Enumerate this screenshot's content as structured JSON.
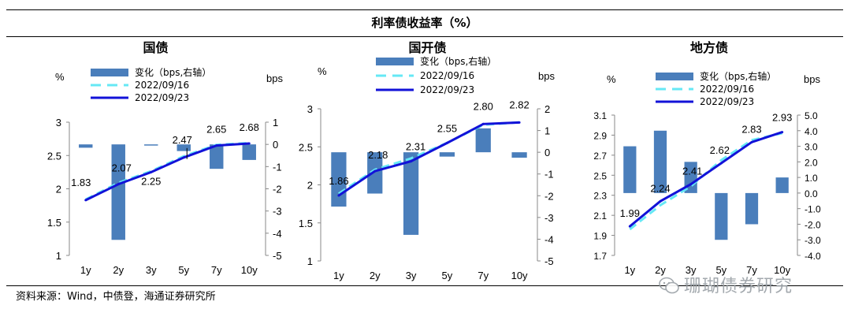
{
  "header": {
    "title": "利率债收益率（%）"
  },
  "source": {
    "text": "资料来源：Wind，中债登，海通证券研究所"
  },
  "watermark": {
    "text": "珊瑚债券研究"
  },
  "colors": {
    "bar": "#4a7ebb",
    "prev_line": "#66e8f5",
    "curr_line": "#1212d8"
  },
  "chart_data": [
    {
      "id": "gz",
      "type": "bar+line",
      "title": "国债",
      "categories": [
        "1y",
        "2y",
        "3y",
        "5y",
        "7y",
        "10y"
      ],
      "left_unit": "%",
      "right_unit": "bps",
      "legend": {
        "bar": "变化（bps,右轴）",
        "prev": "2022/09/16",
        "curr": "2022/09/23"
      },
      "y_left": {
        "min": 1,
        "max": 3,
        "ticks": [
          1,
          1.5,
          2,
          2.5,
          3
        ],
        "tick_labels": [
          "1",
          "1.5",
          "2",
          "2.5",
          "3"
        ]
      },
      "y_right": {
        "min": -5,
        "max": 1,
        "ticks": [
          -5,
          -4,
          -3,
          -2,
          -1,
          0,
          1
        ],
        "tick_labels": [
          "-5",
          "-4",
          "-3",
          "-2",
          "-1",
          "0",
          "1"
        ]
      },
      "series": [
        {
          "name": "变化（bps,右轴）",
          "kind": "bar",
          "values": [
            -0.15,
            -4.3,
            -0.05,
            -0.3,
            -1.1,
            -0.7
          ]
        },
        {
          "name": "2022/09/16",
          "kind": "line",
          "values": [
            1.84,
            2.09,
            2.265,
            2.49,
            2.66,
            2.687
          ]
        },
        {
          "name": "2022/09/23",
          "kind": "line",
          "values": [
            1.83,
            2.07,
            2.25,
            2.47,
            2.65,
            2.68
          ]
        }
      ],
      "data_labels": [
        "1.83",
        "2.07",
        "2.25",
        "2.47",
        "2.65",
        "2.68"
      ]
    },
    {
      "id": "gkz",
      "type": "bar+line",
      "title": "国开债",
      "categories": [
        "1y",
        "2y",
        "3y",
        "5y",
        "7y",
        "10y"
      ],
      "left_unit": "%",
      "right_unit": "bps",
      "legend": {
        "bar": "变化（bps,右轴）",
        "prev": "2022/09/16",
        "curr": "2022/09/23"
      },
      "y_left": {
        "min": 1,
        "max": 3,
        "ticks": [
          1,
          1.5,
          2,
          2.5,
          3
        ],
        "tick_labels": [
          "1",
          "1.5",
          "2",
          "2.5",
          "3"
        ]
      },
      "y_right": {
        "min": -5,
        "max": 2,
        "ticks": [
          -5,
          -4,
          -3,
          -2,
          -1,
          0,
          1,
          2
        ],
        "tick_labels": [
          "-5",
          "-4",
          "-3",
          "-2",
          "-1",
          "0",
          "1",
          "2"
        ]
      },
      "series": [
        {
          "name": "变化（bps,右轴）",
          "kind": "bar",
          "values": [
            -2.5,
            -1.9,
            -3.8,
            -0.2,
            1.1,
            -0.25
          ]
        },
        {
          "name": "2022/09/16",
          "kind": "line",
          "values": [
            1.885,
            2.199,
            2.348,
            2.552,
            2.789,
            2.823
          ]
        },
        {
          "name": "2022/09/23",
          "kind": "line",
          "values": [
            1.86,
            2.18,
            2.31,
            2.55,
            2.8,
            2.82
          ]
        }
      ],
      "data_labels": [
        "1.86",
        "2.18",
        "2.31",
        "2.55",
        "2.80",
        "2.82"
      ]
    },
    {
      "id": "dfz",
      "type": "bar+line",
      "title": "地方债",
      "categories": [
        "1y",
        "2y",
        "3y",
        "5y",
        "7y",
        "10y"
      ],
      "left_unit": "%",
      "right_unit": "bps",
      "legend": {
        "bar": "变化（bps,右轴）",
        "prev": "2022/09/16",
        "curr": "2022/09/23"
      },
      "y_left": {
        "min": 1.7,
        "max": 3.1,
        "ticks": [
          1.7,
          1.9,
          2.1,
          2.3,
          2.5,
          2.7,
          2.9,
          3.1
        ],
        "tick_labels": [
          "1.7",
          "1.9",
          "2.1",
          "2.3",
          "2.5",
          "2.7",
          "2.9",
          "3.1"
        ]
      },
      "y_right": {
        "min": -4,
        "max": 5,
        "ticks": [
          -4,
          -3,
          -2,
          -1,
          0,
          1,
          2,
          3,
          4,
          5
        ],
        "tick_labels": [
          "-4.0",
          "-3.0",
          "-2.0",
          "-1.0",
          "0.0",
          "1.0",
          "2.0",
          "3.0",
          "4.0",
          "5.0"
        ]
      },
      "series": [
        {
          "name": "变化（bps,右轴）",
          "kind": "bar",
          "values": [
            3.0,
            4.0,
            2.0,
            -3.0,
            -2.0,
            1.0
          ]
        },
        {
          "name": "2022/09/16",
          "kind": "line",
          "values": [
            1.96,
            2.2,
            2.39,
            2.65,
            2.85,
            2.92
          ]
        },
        {
          "name": "2022/09/23",
          "kind": "line",
          "values": [
            1.99,
            2.24,
            2.41,
            2.62,
            2.83,
            2.93
          ]
        }
      ],
      "data_labels": [
        "1.99",
        "2.24",
        "2.41",
        "2.62",
        "2.83",
        "2.93"
      ]
    }
  ]
}
